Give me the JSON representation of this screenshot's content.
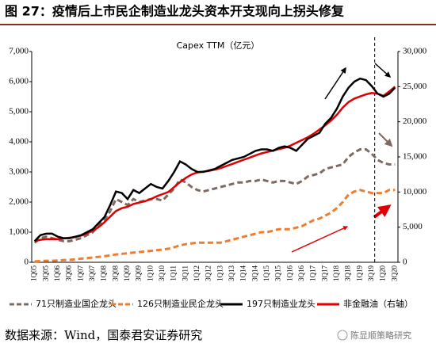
{
  "chart_data": {
    "type": "line",
    "title": "图 27：疫情后上市民企制造业龙头资本开支现向上拐头修复",
    "subtitle": "Capex TTM（亿元）",
    "source": "数据来源：Wind，国泰君安证券研究",
    "watermark": "陈显顺策略研究",
    "categories": [
      "1Q05",
      null,
      "3Q05",
      null,
      "1Q06",
      null,
      "3Q06",
      null,
      "1Q07",
      null,
      "3Q07",
      null,
      "1Q08",
      null,
      "3Q08",
      null,
      "1Q09",
      null,
      "3Q09",
      null,
      "1Q10",
      null,
      "3Q10",
      null,
      "1Q11",
      null,
      "3Q11",
      null,
      "1Q12",
      null,
      "3Q12",
      null,
      "1Q13",
      null,
      "3Q13",
      null,
      "1Q14",
      null,
      "3Q14",
      null,
      "1Q15",
      null,
      "3Q15",
      null,
      "1Q16",
      null,
      "3Q16",
      null,
      "1Q17",
      null,
      "3Q17",
      null,
      "1Q18",
      null,
      "3Q18",
      null,
      "1Q19",
      null,
      "3Q19",
      null,
      "1Q20",
      null,
      "3Q20"
    ],
    "series": [
      {
        "name": "71只制造业国企龙头",
        "color": "#7f6a5f",
        "dash": true,
        "values": [
          650,
          800,
          850,
          800,
          750,
          700,
          700,
          750,
          800,
          900,
          1000,
          1200,
          1400,
          1700,
          2100,
          2000,
          1900,
          2100,
          2000,
          2050,
          2100,
          2100,
          2050,
          2250,
          2450,
          2750,
          2650,
          2500,
          2400,
          2350,
          2400,
          2450,
          2500,
          2550,
          2600,
          2650,
          2650,
          2700,
          2700,
          2750,
          2700,
          2650,
          2700,
          2700,
          2650,
          2600,
          2700,
          2850,
          2900,
          2950,
          3100,
          3150,
          3200,
          3250,
          3500,
          3650,
          3750,
          3750,
          3600,
          3400,
          3300,
          3250,
          3250
        ]
      },
      {
        "name": "126只制造业民企龙头",
        "color": "#ed7d31",
        "dash": true,
        "values": [
          30,
          40,
          50,
          50,
          60,
          70,
          80,
          100,
          120,
          140,
          160,
          180,
          200,
          230,
          260,
          280,
          300,
          320,
          340,
          360,
          380,
          400,
          420,
          450,
          500,
          560,
          600,
          630,
          650,
          650,
          650,
          650,
          650,
          700,
          750,
          800,
          850,
          900,
          950,
          1000,
          1000,
          1050,
          1100,
          1100,
          1100,
          1150,
          1200,
          1300,
          1400,
          1450,
          1550,
          1650,
          1800,
          2000,
          2250,
          2350,
          2400,
          2350,
          2300,
          2300,
          2300,
          2400,
          2400
        ]
      },
      {
        "name": "197只制造业龙头",
        "color": "#000000",
        "dash": false,
        "values": [
          700,
          900,
          950,
          950,
          850,
          800,
          800,
          850,
          900,
          1000,
          1100,
          1300,
          1500,
          1900,
          2350,
          2300,
          2100,
          2400,
          2300,
          2450,
          2600,
          2500,
          2450,
          2700,
          3000,
          3350,
          3250,
          3100,
          3000,
          3000,
          3050,
          3100,
          3200,
          3300,
          3400,
          3450,
          3500,
          3600,
          3700,
          3750,
          3750,
          3700,
          3800,
          3850,
          3800,
          3700,
          3900,
          4100,
          4200,
          4300,
          4600,
          4800,
          5100,
          5500,
          5800,
          6000,
          6100,
          6050,
          5850,
          5600,
          5500,
          5600,
          5800
        ]
      },
      {
        "name": "非金融油（右轴）",
        "color": "#e00000",
        "dash": false,
        "axis": "y2",
        "values": [
          3000,
          3200,
          3300,
          3300,
          3300,
          3400,
          3500,
          3600,
          3800,
          4100,
          4500,
          5000,
          5700,
          6500,
          7300,
          7700,
          7900,
          8300,
          8500,
          8700,
          9000,
          9400,
          9700,
          10000,
          10700,
          11400,
          12000,
          12500,
          12800,
          12900,
          13000,
          13200,
          13400,
          13700,
          14000,
          14300,
          14600,
          14900,
          15200,
          15500,
          15700,
          15900,
          16100,
          16300,
          16600,
          17000,
          17400,
          17800,
          18300,
          18900,
          19500,
          20200,
          21000,
          22000,
          22800,
          23300,
          23600,
          23900,
          24100,
          24000,
          23700,
          24300,
          25000
        ]
      }
    ],
    "ylim": [
      0,
      7000
    ],
    "yticks": [
      0,
      {
        "value": 1000,
        "label": "1,000"
      },
      {
        "value": 2000,
        "label": "2,000"
      },
      {
        "value": 3000,
        "label": "3,000"
      },
      {
        "value": 4000,
        "label": "4,000"
      },
      {
        "value": 5000,
        "label": "5,000"
      },
      {
        "value": 6000,
        "label": "6,000"
      },
      {
        "value": 7000,
        "label": "7,000"
      }
    ],
    "y2lim": [
      0,
      30000
    ],
    "y2ticks": [
      0,
      {
        "value": 5000,
        "label": "5,000"
      },
      {
        "value": 10000,
        "label": "10,000"
      },
      {
        "value": 15000,
        "label": "15,000"
      },
      {
        "value": 20000,
        "label": "20,000"
      },
      {
        "value": 25000,
        "label": "25,000"
      },
      {
        "value": 30000,
        "label": "30,000"
      }
    ]
  }
}
